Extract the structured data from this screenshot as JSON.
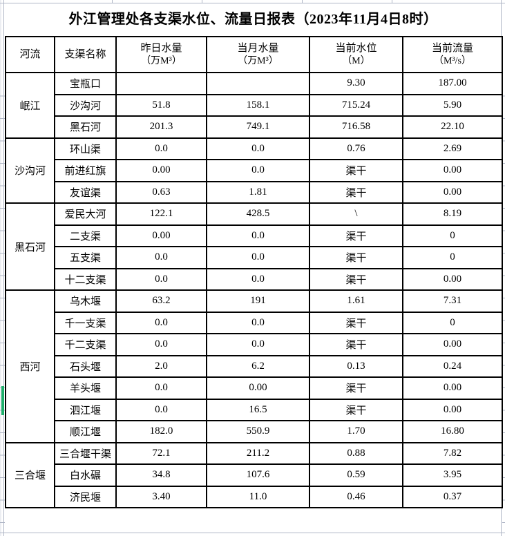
{
  "app": {
    "grid_color": "#aeb5c5",
    "selection_indicator_color": "#1fb06c"
  },
  "title": "外江管理处各支渠水位、流量日报表（2023年11月4日8时）",
  "header": {
    "river": "河流",
    "canal": "支渠名称",
    "cols": [
      {
        "line1": "昨日水量",
        "line2": "（万M³）"
      },
      {
        "line1": "当月水量",
        "line2": "（万M³）"
      },
      {
        "line1": "当前水位",
        "line2": "（M）"
      },
      {
        "line1": "当前流量",
        "line2": "（M³/s）"
      }
    ]
  },
  "groups": [
    {
      "river": "岷江",
      "rows": [
        {
          "name": "宝瓶口",
          "v": [
            "",
            "",
            "9.30",
            "187.00"
          ]
        },
        {
          "name": "沙沟河",
          "v": [
            "51.8",
            "158.1",
            "715.24",
            "5.90"
          ]
        },
        {
          "name": "黑石河",
          "v": [
            "201.3",
            "749.1",
            "716.58",
            "22.10"
          ]
        }
      ]
    },
    {
      "river": "沙沟河",
      "rows": [
        {
          "name": "环山渠",
          "v": [
            "0.0",
            "0.0",
            "0.76",
            "2.69"
          ]
        },
        {
          "name": "前进红旗",
          "v": [
            "0.00",
            "0.0",
            "渠干",
            "0.00"
          ]
        },
        {
          "name": "友谊渠",
          "v": [
            "0.63",
            "1.81",
            "渠干",
            "0.00"
          ]
        }
      ]
    },
    {
      "river": "黑石河",
      "rows": [
        {
          "name": "爱民大河",
          "v": [
            "122.1",
            "428.5",
            "\\",
            "8.19"
          ]
        },
        {
          "name": "二支渠",
          "v": [
            "0.00",
            "0.0",
            "渠干",
            "0"
          ]
        },
        {
          "name": "五支渠",
          "v": [
            "0.0",
            "0.0",
            "渠干",
            "0"
          ]
        },
        {
          "name": "十二支渠",
          "v": [
            "0.0",
            "0.0",
            "渠干",
            "0.00"
          ]
        }
      ]
    },
    {
      "river": "西河",
      "rows": [
        {
          "name": "乌木堰",
          "v": [
            "63.2",
            "191",
            "1.61",
            "7.31"
          ]
        },
        {
          "name": "千一支渠",
          "v": [
            "0.0",
            "0.0",
            "渠干",
            "0"
          ]
        },
        {
          "name": "千二支渠",
          "v": [
            "0.0",
            "0.0",
            "渠干",
            "0.00"
          ]
        },
        {
          "name": "石头堰",
          "v": [
            "2.0",
            "6.2",
            "0.13",
            "0.24"
          ]
        },
        {
          "name": "羊头堰",
          "v": [
            "0.0",
            "0.00",
            "渠干",
            "0.00"
          ]
        },
        {
          "name": "泗江堰",
          "v": [
            "0.0",
            "16.5",
            "渠干",
            "0.00"
          ]
        },
        {
          "name": "顺江堰",
          "v": [
            "182.0",
            "550.9",
            "1.70",
            "16.80"
          ]
        }
      ]
    },
    {
      "river": "三合堰",
      "rows": [
        {
          "name": "三合堰干渠",
          "v": [
            "72.1",
            "211.2",
            "0.88",
            "7.82"
          ]
        },
        {
          "name": "白水碾",
          "v": [
            "34.8",
            "107.6",
            "0.59",
            "3.95"
          ]
        },
        {
          "name": "济民堰",
          "v": [
            "3.40",
            "11.0",
            "0.46",
            "0.37"
          ]
        }
      ]
    }
  ]
}
